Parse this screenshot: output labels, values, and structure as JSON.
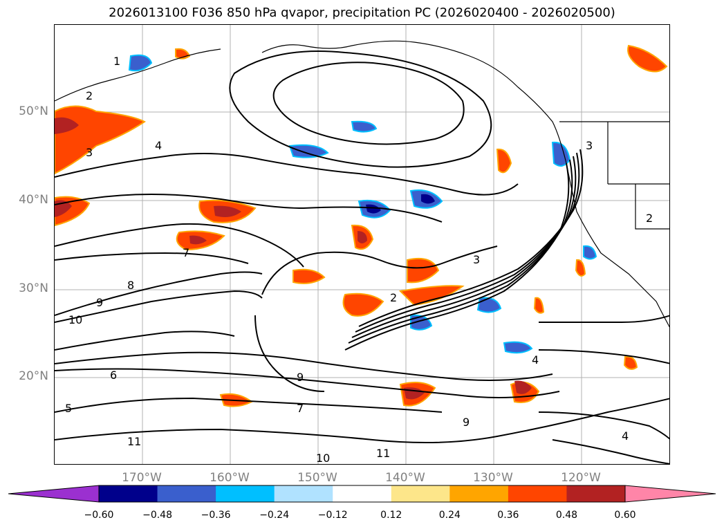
{
  "title": "2026013100 F036 850 hPa qvapor, precipitation PC (2026020400 - 2026020500)",
  "lat_labels": [
    "50°N",
    "40°N",
    "30°N",
    "20°N"
  ],
  "lon_labels": [
    "170°W",
    "160°W",
    "150°W",
    "140°W",
    "130°W",
    "120°W"
  ],
  "colorbar": {
    "ticks": [
      "−0.60",
      "−0.48",
      "−0.36",
      "−0.24",
      "−0.12",
      "0.12",
      "0.24",
      "0.36",
      "0.48",
      "0.60"
    ],
    "colors": [
      "#9b30d0",
      "#00008b",
      "#3a5fcd",
      "#00bfff",
      "#b0e2ff",
      "#ffffff",
      "#fde68a",
      "#ffa500",
      "#ff4500",
      "#b22222",
      "#ff85a8"
    ]
  },
  "contour_labels": [
    "1",
    "2",
    "3",
    "4",
    "5",
    "6",
    "7",
    "8",
    "9",
    "10",
    "11"
  ]
}
